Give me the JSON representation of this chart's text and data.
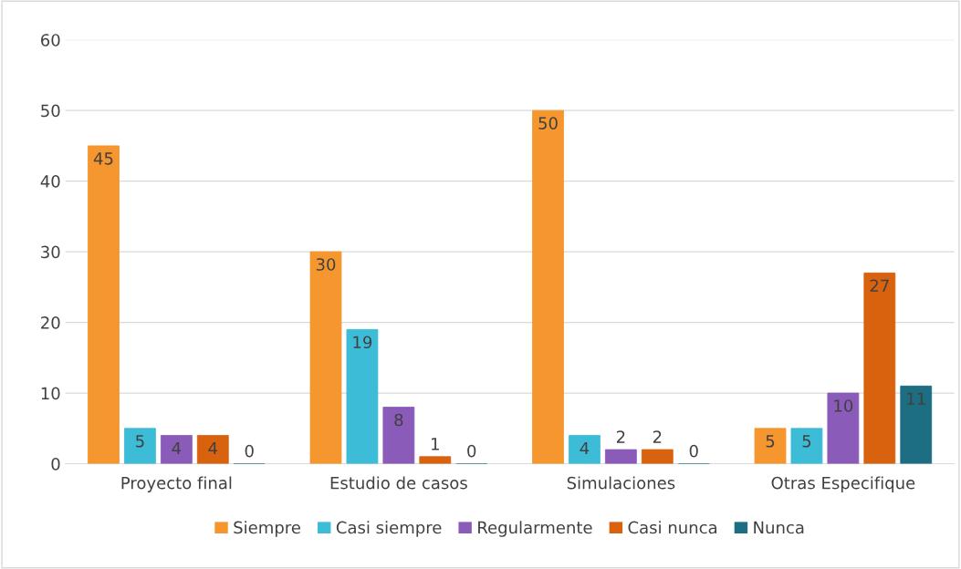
{
  "chart_data": {
    "type": "bar",
    "categories": [
      "Proyecto final",
      "Estudio de casos",
      "Simulaciones",
      "Otras Especifique"
    ],
    "series": [
      {
        "name": "Siempre",
        "color": "#f5962e",
        "values": [
          45,
          30,
          50,
          5
        ]
      },
      {
        "name": "Casi siempre",
        "color": "#3cbcd6",
        "values": [
          5,
          19,
          4,
          5
        ]
      },
      {
        "name": "Regularmente",
        "color": "#8a5bb8",
        "values": [
          4,
          8,
          2,
          10
        ]
      },
      {
        "name": "Casi nunca",
        "color": "#d9620f",
        "values": [
          4,
          1,
          2,
          27
        ]
      },
      {
        "name": "Nunca",
        "color": "#1e6e83",
        "values": [
          0,
          0,
          0,
          11
        ]
      }
    ],
    "ylim": [
      0,
      60
    ],
    "yticks": [
      0,
      10,
      20,
      30,
      40,
      50,
      60
    ],
    "grid": "y",
    "legend": "bottom",
    "data_labels": true
  }
}
